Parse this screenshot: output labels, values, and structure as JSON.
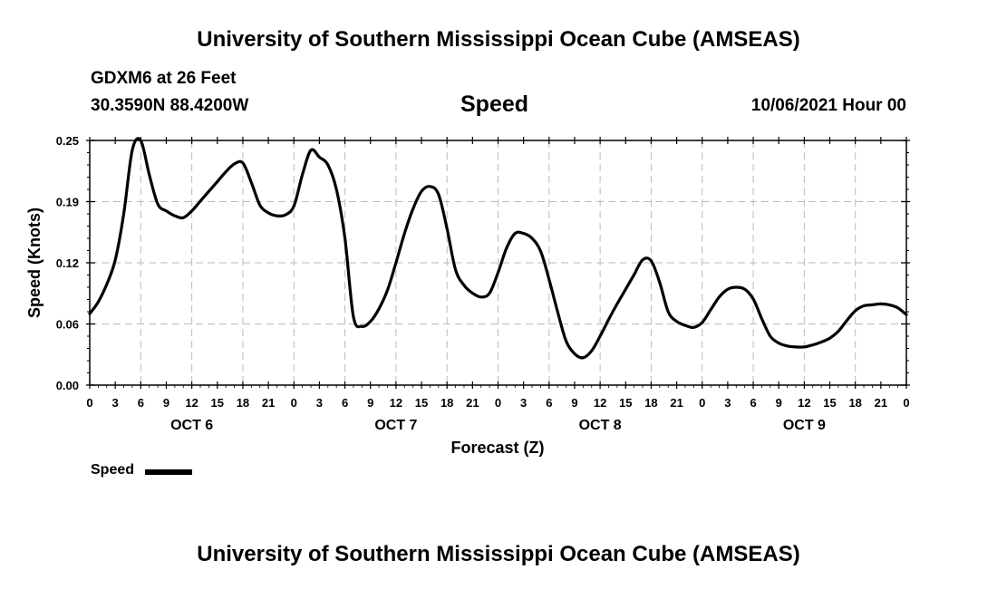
{
  "header": {
    "title": "University of Southern Mississippi Ocean Cube (AMSEAS)",
    "station": "GDXM6 at 26 Feet",
    "coords": "30.3590N  88.4200W",
    "variable": "Speed",
    "datetime": "10/06/2021 Hour 00"
  },
  "footer": {
    "title": "University of Southern Mississippi Ocean Cube (AMSEAS)"
  },
  "legend": {
    "label": "Speed"
  },
  "chart_data": {
    "type": "line",
    "title": "Speed",
    "xlabel": "Forecast (Z)",
    "ylabel": "Speed (Knots)",
    "ylim": [
      0,
      0.25
    ],
    "xlim": [
      0,
      96
    ],
    "x_unit": "hours from 10/06/2021 00Z",
    "yticks": [
      "0.00",
      "0.06",
      "0.12",
      "0.19",
      "0.25"
    ],
    "ytick_values": [
      0,
      0.0625,
      0.125,
      0.1875,
      0.25
    ],
    "xtick_labels": [
      "0",
      "3",
      "6",
      "9",
      "12",
      "15",
      "18",
      "21",
      "0",
      "3",
      "6",
      "9",
      "12",
      "15",
      "18",
      "21",
      "0",
      "3",
      "6",
      "9",
      "12",
      "15",
      "18",
      "21",
      "0",
      "3",
      "6",
      "9",
      "12",
      "15",
      "18",
      "21",
      "0"
    ],
    "day_labels": [
      "OCT 6",
      "OCT 7",
      "OCT 8",
      "OCT 9"
    ],
    "day_label_hours": [
      12,
      36,
      60,
      84
    ],
    "grid": true,
    "series": [
      {
        "name": "Speed",
        "color": "#000000",
        "x": [
          0,
          1,
          2,
          3,
          4,
          5,
          6,
          7,
          8,
          9,
          10,
          11,
          12,
          13,
          14,
          15,
          16,
          17,
          18,
          19,
          20,
          21,
          22,
          23,
          24,
          25,
          26,
          27,
          28,
          29,
          30,
          31,
          32,
          33,
          34,
          35,
          36,
          37,
          38,
          39,
          40,
          41,
          42,
          43,
          44,
          45,
          46,
          47,
          48,
          49,
          50,
          51,
          52,
          53,
          54,
          55,
          56,
          57,
          58,
          59,
          60,
          61,
          62,
          63,
          64,
          65,
          66,
          67,
          68,
          69,
          70,
          71,
          72,
          73,
          74,
          75,
          76,
          77,
          78,
          79,
          80,
          81,
          82,
          83,
          84,
          85,
          86,
          87,
          88,
          89,
          90,
          91,
          92,
          93,
          94,
          95,
          96
        ],
        "values": [
          0.073,
          0.085,
          0.103,
          0.128,
          0.175,
          0.24,
          0.25,
          0.215,
          0.185,
          0.178,
          0.173,
          0.171,
          0.178,
          0.188,
          0.198,
          0.208,
          0.218,
          0.226,
          0.227,
          0.207,
          0.184,
          0.176,
          0.173,
          0.174,
          0.183,
          0.215,
          0.24,
          0.233,
          0.225,
          0.2,
          0.15,
          0.07,
          0.06,
          0.065,
          0.078,
          0.097,
          0.125,
          0.155,
          0.18,
          0.198,
          0.203,
          0.195,
          0.16,
          0.118,
          0.102,
          0.094,
          0.09,
          0.094,
          0.115,
          0.14,
          0.155,
          0.155,
          0.15,
          0.137,
          0.108,
          0.075,
          0.045,
          0.032,
          0.028,
          0.035,
          0.05,
          0.067,
          0.083,
          0.098,
          0.113,
          0.128,
          0.127,
          0.105,
          0.075,
          0.065,
          0.061,
          0.059,
          0.064,
          0.077,
          0.09,
          0.098,
          0.1,
          0.098,
          0.088,
          0.068,
          0.05,
          0.043,
          0.04,
          0.039,
          0.039,
          0.041,
          0.044,
          0.048,
          0.055,
          0.066,
          0.076,
          0.081,
          0.082,
          0.083,
          0.082,
          0.079,
          0.072
        ]
      }
    ]
  }
}
